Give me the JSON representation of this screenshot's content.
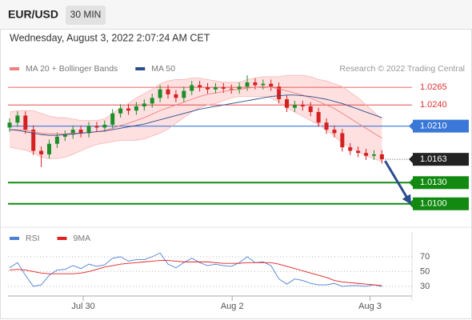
{
  "chart_data": {
    "type": "candlestick",
    "symbol": "EUR/USD",
    "timeframe": "30 MIN",
    "date": "Wednesday, August 3, 2022 2:07:24 AM CET",
    "source": "Research © 2022 Trading Central",
    "x": [
      0,
      1,
      2,
      3,
      4,
      5,
      6,
      7,
      8,
      9,
      10,
      11,
      12,
      13,
      14,
      15,
      16,
      17,
      18,
      19,
      20,
      21,
      22,
      23,
      24,
      25,
      26,
      27,
      28,
      29,
      30,
      31,
      32,
      33,
      34,
      35,
      36,
      37,
      38,
      39,
      40,
      41,
      42,
      43,
      44,
      45,
      46,
      47
    ],
    "xlim": [
      -0.2,
      50.8
    ],
    "xticks": [
      {
        "value": 9.3,
        "label": "Jul 30"
      },
      {
        "value": 28.1,
        "label": "Aug 2"
      },
      {
        "value": 45.5,
        "label": "Aug 3"
      }
    ],
    "ylim": [
      1.0068,
      1.0281
    ],
    "up_color": "#1a8f2a",
    "down_color": "#d42020",
    "open": [
      1.0208,
      1.0215,
      1.0225,
      1.0205,
      1.0175,
      1.017,
      1.0185,
      1.0195,
      1.0198,
      1.0205,
      1.02,
      1.021,
      1.0208,
      1.0212,
      1.0228,
      1.0235,
      1.0232,
      1.0238,
      1.0242,
      1.025,
      1.0262,
      1.0255,
      1.025,
      1.026,
      1.0268,
      1.0265,
      1.0262,
      1.0265,
      1.0263,
      1.0262,
      1.0266,
      1.0272,
      1.0268,
      1.027,
      1.0266,
      1.0248,
      1.0236,
      1.024,
      1.0238,
      1.023,
      1.0215,
      1.0205,
      1.02,
      1.018,
      1.0175,
      1.0172,
      1.0168,
      1.017
    ],
    "high": [
      1.0221,
      1.0231,
      1.0231,
      1.0211,
      1.0181,
      1.0191,
      1.0201,
      1.0204,
      1.0211,
      1.0211,
      1.0216,
      1.0216,
      1.0218,
      1.0234,
      1.0241,
      1.0241,
      1.0244,
      1.0248,
      1.0256,
      1.0268,
      1.0268,
      1.0261,
      1.0266,
      1.0274,
      1.0274,
      1.0271,
      1.0271,
      1.0271,
      1.0269,
      1.0272,
      1.0282,
      1.0278,
      1.0276,
      1.0276,
      1.0272,
      1.0254,
      1.0246,
      1.0246,
      1.0244,
      1.0236,
      1.0221,
      1.0211,
      1.0206,
      1.0186,
      1.0181,
      1.0178,
      1.0176,
      1.0176
    ],
    "low": [
      1.0202,
      1.0209,
      1.0199,
      1.0169,
      1.0152,
      1.0164,
      1.0179,
      1.0189,
      1.0192,
      1.0194,
      1.0194,
      1.0202,
      1.0202,
      1.0206,
      1.0222,
      1.0226,
      1.0226,
      1.0232,
      1.0236,
      1.0244,
      1.0249,
      1.0244,
      1.0244,
      1.0254,
      1.0259,
      1.0256,
      1.0256,
      1.0257,
      1.0256,
      1.0256,
      1.026,
      1.0262,
      1.0262,
      1.026,
      1.0242,
      1.023,
      1.023,
      1.0232,
      1.0224,
      1.0209,
      1.0199,
      1.0194,
      1.0174,
      1.0169,
      1.0166,
      1.0162,
      1.0162,
      1.0157
    ],
    "close": [
      1.0215,
      1.0225,
      1.0205,
      1.0175,
      1.017,
      1.0185,
      1.0195,
      1.0198,
      1.0205,
      1.02,
      1.021,
      1.0208,
      1.0212,
      1.0228,
      1.0235,
      1.0232,
      1.0238,
      1.0242,
      1.025,
      1.0262,
      1.0255,
      1.025,
      1.026,
      1.0268,
      1.0265,
      1.0262,
      1.0265,
      1.0263,
      1.0262,
      1.0266,
      1.0272,
      1.0268,
      1.027,
      1.0266,
      1.0248,
      1.0236,
      1.024,
      1.0238,
      1.023,
      1.0215,
      1.0205,
      1.02,
      1.018,
      1.0175,
      1.0172,
      1.0168,
      1.017,
      1.0163
    ],
    "series": [
      {
        "name": "MA 20 + Bollinger Bands",
        "color": "#f08080",
        "band_color": "#fdd6d6",
        "values": [
          1.0205,
          1.0205,
          1.0204,
          1.0202,
          1.02,
          1.0199,
          1.0199,
          1.0199,
          1.02,
          1.02,
          1.0201,
          1.0202,
          1.0204,
          1.0207,
          1.0211,
          1.0214,
          1.0218,
          1.0222,
          1.0227,
          1.0232,
          1.0236,
          1.024,
          1.0244,
          1.0248,
          1.0252,
          1.0255,
          1.0257,
          1.0259,
          1.0261,
          1.0262,
          1.0264,
          1.0265,
          1.0266,
          1.0265,
          1.0263,
          1.026,
          1.0257,
          1.0254,
          1.025,
          1.0245,
          1.024,
          1.0235,
          1.0228,
          1.0221,
          1.0214,
          1.0207,
          1.02,
          1.0193
        ],
        "upper": [
          1.023,
          1.0232,
          1.0232,
          1.0232,
          1.0228,
          1.0224,
          1.0222,
          1.0222,
          1.022,
          1.0218,
          1.0218,
          1.0218,
          1.022,
          1.0228,
          1.0236,
          1.0242,
          1.025,
          1.0256,
          1.0262,
          1.027,
          1.0274,
          1.0276,
          1.0276,
          1.0278,
          1.0278,
          1.0276,
          1.0274,
          1.0272,
          1.0272,
          1.0272,
          1.0276,
          1.0278,
          1.028,
          1.028,
          1.028,
          1.0282,
          1.0282,
          1.0282,
          1.028,
          1.0276,
          1.0274,
          1.027,
          1.0266,
          1.0258,
          1.025,
          1.024,
          1.023,
          1.022
        ],
        "lower": [
          1.018,
          1.0178,
          1.0176,
          1.0172,
          1.0166,
          1.0164,
          1.0164,
          1.0166,
          1.017,
          1.0175,
          1.018,
          1.0184,
          1.0186,
          1.0188,
          1.019,
          1.019,
          1.019,
          1.0192,
          1.0196,
          1.02,
          1.0206,
          1.0214,
          1.0222,
          1.023,
          1.0236,
          1.024,
          1.0242,
          1.0246,
          1.025,
          1.0252,
          1.0252,
          1.0252,
          1.0252,
          1.025,
          1.0244,
          1.0236,
          1.023,
          1.0224,
          1.0218,
          1.0212,
          1.0204,
          1.0196,
          1.0186,
          1.018,
          1.0174,
          1.0168,
          1.0164,
          1.016
        ]
      },
      {
        "name": "MA 50",
        "color": "#2b4d8c",
        "values": [
          1.0205,
          1.0204,
          1.0202,
          1.02,
          1.0198,
          1.0197,
          1.0197,
          1.0198,
          1.0199,
          1.02,
          1.0201,
          1.0202,
          1.0203,
          1.0205,
          1.0207,
          1.0209,
          1.0211,
          1.0213,
          1.0216,
          1.0219,
          1.0222,
          1.0225,
          1.0228,
          1.0231,
          1.0234,
          1.0236,
          1.0238,
          1.024,
          1.0242,
          1.0244,
          1.0246,
          1.0248,
          1.025,
          1.0252,
          1.0253,
          1.0254,
          1.0254,
          1.0253,
          1.0252,
          1.025,
          1.0248,
          1.0245,
          1.0242,
          1.0238,
          1.0234,
          1.023,
          1.0226,
          1.0222
        ]
      }
    ],
    "levels": [
      {
        "value": 1.0265,
        "label": "1.0265",
        "color": "#e03030",
        "kind": "text"
      },
      {
        "value": 1.024,
        "label": "1.0240",
        "color": "#e03030",
        "kind": "text"
      },
      {
        "value": 1.021,
        "label": "1.0210",
        "color": "#3a78d8",
        "kind": "box"
      },
      {
        "value": 1.0163,
        "label": "1.0163",
        "color": "#222222",
        "kind": "last"
      },
      {
        "value": 1.013,
        "label": "1.0130",
        "color": "#128a12",
        "kind": "box"
      },
      {
        "value": 1.01,
        "label": "1.0100",
        "color": "#128a12",
        "kind": "box"
      }
    ],
    "rsi": {
      "ylim": [
        17,
        85
      ],
      "yticks": [
        30,
        50,
        70
      ],
      "series": [
        {
          "name": "RSI",
          "color": "#4a7fd4",
          "values": [
            55,
            62,
            45,
            30,
            32,
            45,
            52,
            53,
            58,
            54,
            60,
            57,
            59,
            68,
            70,
            64,
            66,
            66,
            70,
            75,
            60,
            55,
            62,
            68,
            62,
            58,
            60,
            58,
            57,
            62,
            70,
            62,
            63,
            58,
            40,
            33,
            40,
            38,
            34,
            32,
            32,
            34,
            30,
            31,
            31,
            30,
            32,
            30
          ]
        },
        {
          "name": "9MA",
          "color": "#e02020",
          "values": [
            52,
            53,
            52,
            50,
            48,
            47,
            47,
            47,
            47,
            48,
            50,
            53,
            56,
            58,
            60,
            61,
            62,
            63,
            64,
            65,
            65,
            64,
            63,
            63,
            63,
            63,
            62,
            61,
            61,
            61,
            62,
            62,
            62,
            62,
            60,
            57,
            54,
            51,
            48,
            45,
            42,
            38,
            36,
            35,
            34,
            33,
            32,
            31
          ]
        }
      ]
    }
  }
}
